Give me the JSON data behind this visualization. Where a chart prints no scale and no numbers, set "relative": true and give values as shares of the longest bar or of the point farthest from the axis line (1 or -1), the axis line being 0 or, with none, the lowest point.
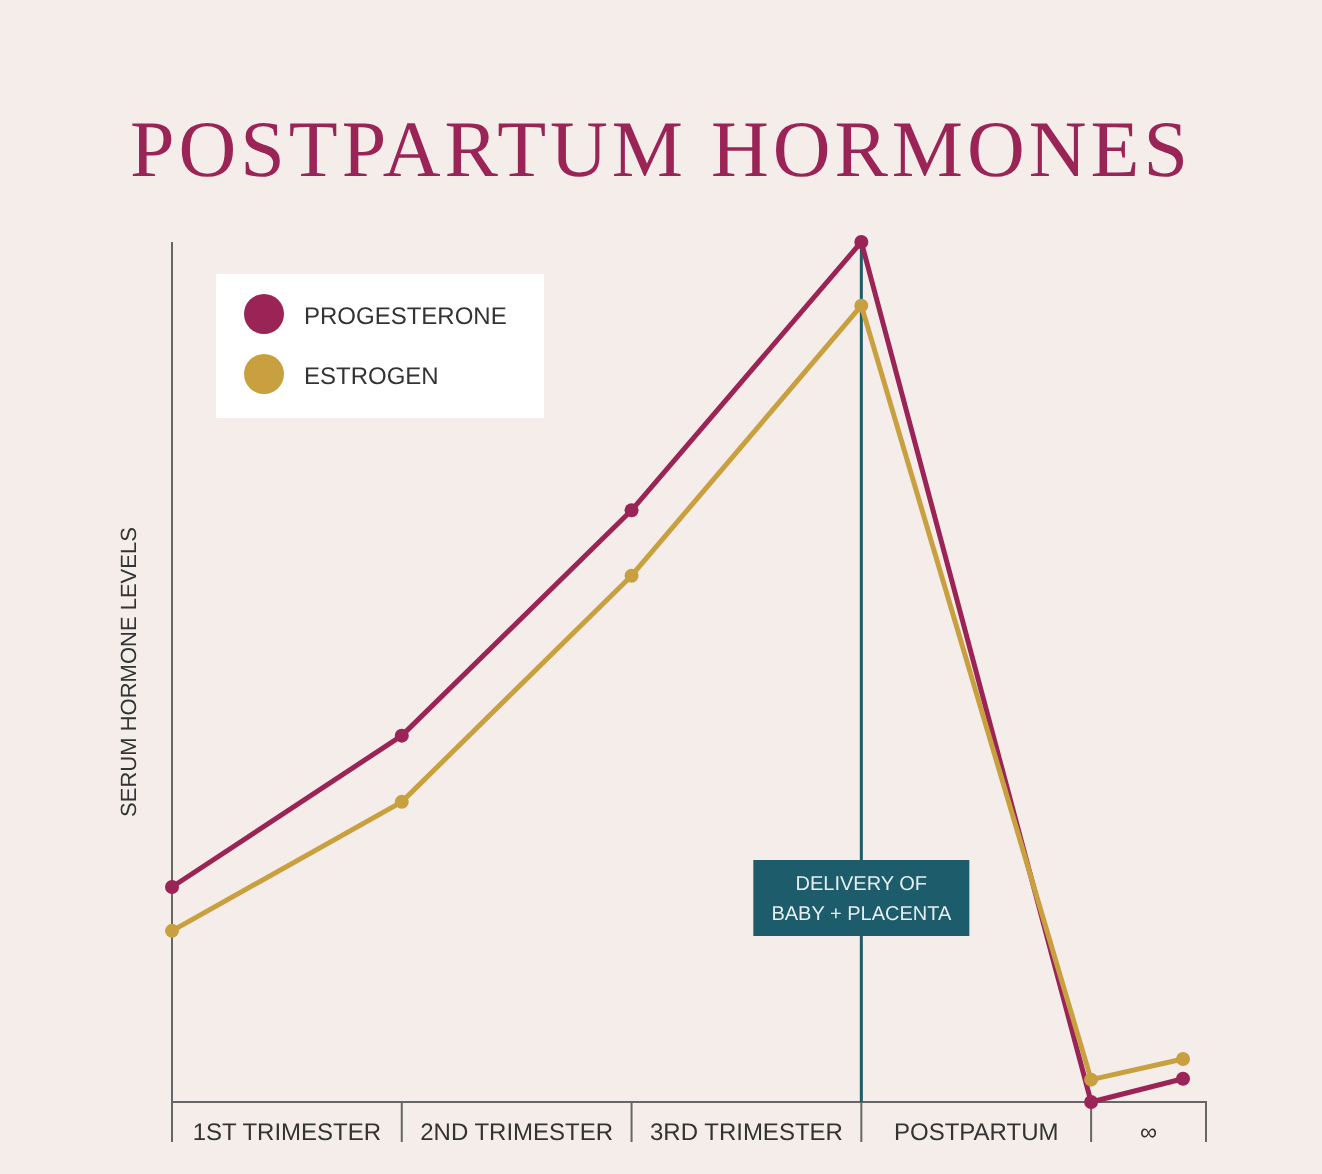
{
  "chart_data": {
    "type": "line",
    "title": "POSTPARTUM HORMONES",
    "ylabel": "SERUM HORMONE LEVELS",
    "relative": true,
    "x": [
      0,
      1,
      2,
      3,
      4,
      4.4
    ],
    "xlim": [
      0,
      4.5
    ],
    "xticks": [
      {
        "value": 0.5,
        "label": "1ST TRIMESTER"
      },
      {
        "value": 1.5,
        "label": "2ND TRIMESTER"
      },
      {
        "value": 2.5,
        "label": "3RD TRIMESTER"
      },
      {
        "value": 3.5,
        "label": "POSTPARTUM"
      },
      {
        "value": 4.25,
        "label": "∞"
      }
    ],
    "series": [
      {
        "name": "PROGESTERONE",
        "color": "#9b2457",
        "values": [
          0.25,
          0.426,
          0.688,
          1,
          0,
          0.027
        ]
      },
      {
        "name": "ESTROGEN",
        "color": "#c9a040",
        "values": [
          0.199,
          0.349,
          0.612,
          0.926,
          0.026,
          0.05
        ]
      }
    ],
    "ref_lines": [
      {
        "axis": "x",
        "value": 3,
        "label": "DELIVERY OF\nBABY + PLACENTA",
        "color": "#1d5c6b"
      }
    ],
    "legend": "top left",
    "marker": "circle",
    "line_style": "solid"
  }
}
